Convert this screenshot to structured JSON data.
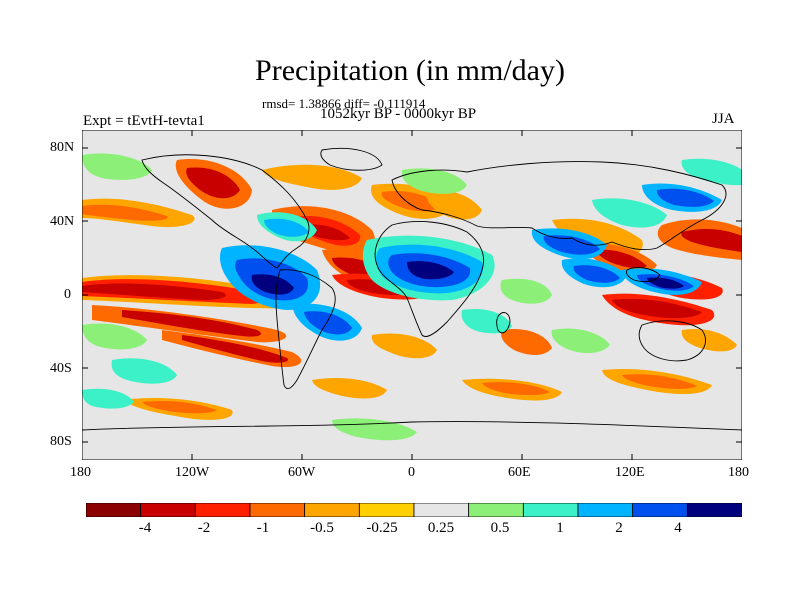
{
  "title": "Precipitation (in mm/day)",
  "stats": "rmsd= 1.38866 diff= -0.111914",
  "period": "1052kyr BP - 0000kyr BP",
  "experiment": "Expt = tEvtH-tevta1",
  "season": "JJA",
  "lat_ticks": [
    "80N",
    "40N",
    "0",
    "40S",
    "80S"
  ],
  "lon_ticks": [
    "180",
    "120W",
    "60W",
    "0",
    "60E",
    "120E",
    "180"
  ],
  "colorbar": {
    "colors": [
      "#8b0000",
      "#c80000",
      "#ff2000",
      "#ff6a00",
      "#ffa500",
      "#ffcf00",
      "#e6e6e6",
      "#8cf078",
      "#3cf0c8",
      "#00b4ff",
      "#0050f0",
      "#00007f"
    ],
    "labels": [
      "-4",
      "-2",
      "-1",
      "-0.5",
      "-0.25",
      "0.25",
      "0.5",
      "1",
      "2",
      "4"
    ]
  },
  "legend_colors": {
    "dry_strong": "#c80000",
    "dry": "#ff6a00",
    "neutral": "#e6e6e6",
    "wet": "#00b4ff",
    "wet_strong": "#0050f0"
  }
}
